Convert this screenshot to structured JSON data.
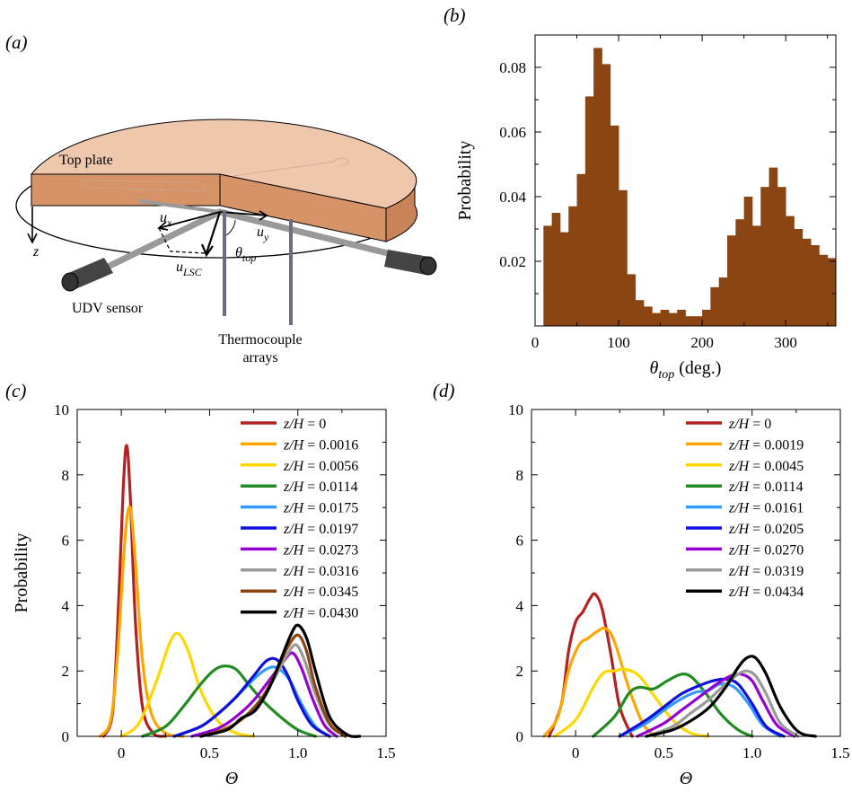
{
  "panels": {
    "a": {
      "label": "(a)",
      "top_plate": "Top plate",
      "udv_sensor": "UDV sensor",
      "thermocouple": "Thermocouple",
      "arrays": "arrays",
      "z_label": "z",
      "ux": "u",
      "ux_sub": "x",
      "uy": "u",
      "uy_sub": "y",
      "ulsc": "u",
      "ulsc_sub": "LSC",
      "theta": "θ",
      "theta_sub": "top",
      "colors": {
        "plate_top": "#efc7ad",
        "plate_side": "#d69368",
        "sensor": "#444444",
        "rod": "#6c6c86"
      }
    },
    "b": {
      "label": "(b)"
    },
    "c": {
      "label": "(c)"
    },
    "d": {
      "label": "(d)"
    }
  },
  "chart_data": [
    {
      "panel": "b",
      "type": "bar",
      "title": "",
      "xlabel_symbol": "θ",
      "xlabel_sub": "top",
      "xlabel_unit": " (deg.)",
      "ylabel": "Probability",
      "xlim": [
        0,
        360
      ],
      "ylim": [
        0,
        0.09
      ],
      "xticks": [
        0,
        100,
        200,
        300
      ],
      "yticks": [
        0.02,
        0.04,
        0.06,
        0.08
      ],
      "bin_width": 10,
      "bin_starts": [
        10,
        20,
        30,
        40,
        50,
        60,
        70,
        80,
        90,
        100,
        110,
        120,
        130,
        140,
        150,
        160,
        170,
        180,
        190,
        200,
        210,
        220,
        230,
        240,
        250,
        260,
        270,
        280,
        290,
        300,
        310,
        320,
        330,
        340,
        350
      ],
      "values": [
        0.031,
        0.035,
        0.029,
        0.037,
        0.047,
        0.071,
        0.086,
        0.081,
        0.062,
        0.042,
        0.016,
        0.008,
        0.006,
        0.004,
        0.005,
        0.004,
        0.005,
        0.003,
        0.003,
        0.005,
        0.012,
        0.015,
        0.028,
        0.033,
        0.04,
        0.031,
        0.043,
        0.049,
        0.043,
        0.034,
        0.03,
        0.027,
        0.025,
        0.022,
        0.021
      ],
      "bar_color": "#8b4513"
    },
    {
      "panel": "c",
      "type": "line",
      "title": "",
      "xlabel": "Θ",
      "ylabel": "Probability",
      "xlim": [
        -0.25,
        1.5
      ],
      "ylim": [
        0,
        10
      ],
      "xticks": [
        0,
        0.5,
        1.0,
        1.5
      ],
      "xtick_labels": [
        "0",
        "0.5",
        "1.0",
        "1.5"
      ],
      "yticks": [
        0,
        2,
        4,
        6,
        8,
        10
      ],
      "legend_location": "top-right",
      "legend_prefix": "z/H",
      "series": [
        {
          "name": "0",
          "color": "#b22222",
          "x": [
            -0.1,
            -0.05,
            -0.02,
            0.01,
            0.03,
            0.05,
            0.08,
            0.12,
            0.18,
            0.25
          ],
          "y": [
            0,
            0.7,
            3.5,
            7.5,
            8.9,
            7.4,
            3.5,
            0.9,
            0.1,
            0
          ]
        },
        {
          "name": "0.0016",
          "color": "#ffa500",
          "x": [
            -0.12,
            -0.06,
            -0.02,
            0.02,
            0.05,
            0.08,
            0.12,
            0.17,
            0.25,
            0.35
          ],
          "y": [
            0,
            0.5,
            2.6,
            6.0,
            7.0,
            5.3,
            2.3,
            0.7,
            0.1,
            0
          ]
        },
        {
          "name": "0.0056",
          "color": "#ffd700",
          "x": [
            0.0,
            0.1,
            0.2,
            0.27,
            0.32,
            0.38,
            0.45,
            0.55,
            0.65,
            0.75
          ],
          "y": [
            0,
            0.4,
            1.7,
            2.8,
            3.15,
            2.6,
            1.4,
            0.45,
            0.1,
            0
          ]
        },
        {
          "name": "0.0114",
          "color": "#228b22",
          "x": [
            0.12,
            0.25,
            0.35,
            0.45,
            0.52,
            0.58,
            0.65,
            0.72,
            0.8,
            0.9,
            1.0,
            1.1
          ],
          "y": [
            0,
            0.3,
            0.9,
            1.6,
            2.0,
            2.15,
            2.05,
            1.6,
            1.1,
            0.6,
            0.2,
            0
          ]
        },
        {
          "name": "0.0175",
          "color": "#3399ff",
          "x": [
            0.3,
            0.45,
            0.55,
            0.65,
            0.75,
            0.82,
            0.88,
            0.95,
            1.02,
            1.1,
            1.18
          ],
          "y": [
            0,
            0.3,
            0.7,
            1.2,
            1.75,
            2.05,
            2.1,
            1.75,
            1.0,
            0.3,
            0
          ]
        },
        {
          "name": "0.0197",
          "color": "#1010dd",
          "x": [
            0.3,
            0.45,
            0.55,
            0.65,
            0.75,
            0.82,
            0.88,
            0.94,
            1.0,
            1.08,
            1.18
          ],
          "y": [
            0,
            0.3,
            0.7,
            1.2,
            1.85,
            2.3,
            2.35,
            1.9,
            1.1,
            0.35,
            0
          ]
        },
        {
          "name": "0.0273",
          "color": "#9400d3",
          "x": [
            0.4,
            0.55,
            0.65,
            0.75,
            0.85,
            0.92,
            0.97,
            1.02,
            1.08,
            1.15,
            1.22
          ],
          "y": [
            0,
            0.25,
            0.6,
            1.1,
            1.8,
            2.3,
            2.55,
            2.1,
            1.2,
            0.35,
            0
          ]
        },
        {
          "name": "0.0316",
          "color": "#999999",
          "x": [
            0.45,
            0.6,
            0.7,
            0.8,
            0.88,
            0.94,
            0.99,
            1.04,
            1.1,
            1.18,
            1.27
          ],
          "y": [
            0,
            0.25,
            0.6,
            1.2,
            1.9,
            2.5,
            2.8,
            2.3,
            1.3,
            0.35,
            0
          ]
        },
        {
          "name": "0.0345",
          "color": "#8b4513",
          "x": [
            0.45,
            0.6,
            0.7,
            0.8,
            0.88,
            0.94,
            1.0,
            1.05,
            1.1,
            1.18,
            1.27
          ],
          "y": [
            0,
            0.25,
            0.6,
            1.2,
            2.0,
            2.7,
            3.1,
            2.6,
            1.5,
            0.4,
            0
          ]
        },
        {
          "name": "0.0430",
          "color": "#000000",
          "x": [
            0.45,
            0.6,
            0.68,
            0.76,
            0.84,
            0.9,
            0.96,
            1.0,
            1.05,
            1.1,
            1.18,
            1.28,
            1.35
          ],
          "y": [
            0,
            0.2,
            0.55,
            0.8,
            1.5,
            2.3,
            3.1,
            3.4,
            3.0,
            2.0,
            0.6,
            0.05,
            0
          ]
        }
      ]
    },
    {
      "panel": "d",
      "type": "line",
      "title": "",
      "xlabel": "Θ",
      "ylabel": "",
      "xlim": [
        -0.25,
        1.5
      ],
      "ylim": [
        0,
        10
      ],
      "xticks": [
        0,
        0.5,
        1.0,
        1.5
      ],
      "xtick_labels": [
        "0",
        "0.5",
        "1.0",
        "1.5"
      ],
      "yticks": [
        0,
        2,
        4,
        6,
        8,
        10
      ],
      "legend_location": "top-right",
      "legend_prefix": "z/H",
      "series": [
        {
          "name": "0",
          "color": "#b22222",
          "x": [
            -0.15,
            -0.08,
            -0.04,
            0.0,
            0.04,
            0.08,
            0.11,
            0.15,
            0.2,
            0.25,
            0.32
          ],
          "y": [
            0,
            1.0,
            2.6,
            3.5,
            3.8,
            4.2,
            4.35,
            3.9,
            2.5,
            0.9,
            0
          ]
        },
        {
          "name": "0.0019",
          "color": "#ffa500",
          "x": [
            -0.18,
            -0.1,
            -0.04,
            0.02,
            0.07,
            0.12,
            0.17,
            0.22,
            0.3,
            0.38,
            0.45
          ],
          "y": [
            0,
            0.6,
            2.0,
            2.8,
            3.0,
            3.2,
            3.3,
            2.9,
            1.5,
            0.4,
            0
          ]
        },
        {
          "name": "0.0045",
          "color": "#ffd700",
          "x": [
            -0.12,
            0.0,
            0.1,
            0.16,
            0.22,
            0.28,
            0.36,
            0.45,
            0.55,
            0.65,
            0.75
          ],
          "y": [
            0,
            0.5,
            1.5,
            1.95,
            2.0,
            2.05,
            1.85,
            1.2,
            0.5,
            0.1,
            0
          ]
        },
        {
          "name": "0.0114",
          "color": "#228b22",
          "x": [
            0.1,
            0.22,
            0.3,
            0.36,
            0.44,
            0.52,
            0.6,
            0.66,
            0.74,
            0.82,
            0.92,
            1.0
          ],
          "y": [
            0,
            0.6,
            1.3,
            1.5,
            1.45,
            1.7,
            1.9,
            1.8,
            1.3,
            0.7,
            0.2,
            0
          ]
        },
        {
          "name": "0.0161",
          "color": "#3399ff",
          "x": [
            0.25,
            0.4,
            0.5,
            0.6,
            0.68,
            0.75,
            0.82,
            0.9,
            0.98,
            1.06,
            1.16
          ],
          "y": [
            0,
            0.4,
            0.8,
            1.15,
            1.35,
            1.4,
            1.6,
            1.5,
            1.0,
            0.35,
            0
          ]
        },
        {
          "name": "0.0205",
          "color": "#1010dd",
          "x": [
            0.25,
            0.4,
            0.5,
            0.6,
            0.7,
            0.78,
            0.85,
            0.92,
            1.0,
            1.08,
            1.18
          ],
          "y": [
            0,
            0.5,
            0.9,
            1.3,
            1.55,
            1.7,
            1.75,
            1.6,
            1.0,
            0.3,
            0
          ]
        },
        {
          "name": "0.0270",
          "color": "#9400d3",
          "x": [
            0.35,
            0.5,
            0.6,
            0.7,
            0.8,
            0.88,
            0.94,
            1.0,
            1.06,
            1.14,
            1.24
          ],
          "y": [
            0,
            0.4,
            0.8,
            1.2,
            1.6,
            1.85,
            1.9,
            1.7,
            1.1,
            0.35,
            0
          ]
        },
        {
          "name": "0.0319",
          "color": "#999999",
          "x": [
            0.4,
            0.55,
            0.65,
            0.75,
            0.85,
            0.92,
            0.97,
            1.02,
            1.08,
            1.16,
            1.26
          ],
          "y": [
            0,
            0.3,
            0.7,
            1.1,
            1.6,
            1.9,
            2.0,
            1.85,
            1.3,
            0.4,
            0
          ]
        },
        {
          "name": "0.0434",
          "color": "#000000",
          "x": [
            0.4,
            0.55,
            0.66,
            0.76,
            0.85,
            0.92,
            0.97,
            1.02,
            1.08,
            1.16,
            1.26,
            1.36
          ],
          "y": [
            0,
            0.2,
            0.5,
            0.9,
            1.5,
            2.1,
            2.4,
            2.4,
            1.9,
            0.9,
            0.15,
            0
          ]
        }
      ]
    }
  ]
}
